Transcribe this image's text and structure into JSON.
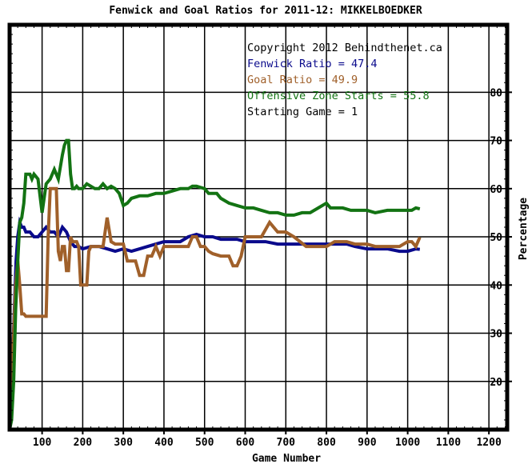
{
  "chart_data": {
    "type": "line",
    "title": "Fenwick and Goal Ratios for 2011-12: MIKKELBOEDKER",
    "xlabel": "Game Number",
    "ylabel": "Percentage",
    "xlim": [
      20,
      1245
    ],
    "ylim": [
      10,
      94
    ],
    "x_ticks": [
      100,
      200,
      300,
      400,
      500,
      600,
      700,
      800,
      900,
      1000,
      1100,
      1200
    ],
    "y_ticks": [
      20,
      30,
      40,
      50,
      60,
      70,
      80
    ],
    "grid": true,
    "annotations": [
      {
        "text": "Copyright 2012 Behindthenet.ca",
        "color": "#000000"
      },
      {
        "text": "Fenwick Ratio = 47.4",
        "color": "#0a0a8c"
      },
      {
        "text": "Goal Ratio = 49.9",
        "color": "#a0602a"
      },
      {
        "text": "Offensive Zone Starts = 55.8",
        "color": "#137313"
      },
      {
        "text": "Starting Game = 1",
        "color": "#000000"
      }
    ],
    "series": [
      {
        "color": "#0a0a8c",
        "x": [
          20,
          22,
          24,
          26,
          28,
          30,
          33,
          36,
          40,
          45,
          50,
          55,
          60,
          70,
          80,
          90,
          100,
          110,
          120,
          130,
          140,
          150,
          160,
          170,
          180,
          190,
          200,
          220,
          240,
          260,
          280,
          300,
          320,
          340,
          360,
          380,
          400,
          420,
          440,
          460,
          480,
          500,
          520,
          540,
          560,
          580,
          600,
          620,
          650,
          680,
          700,
          720,
          750,
          780,
          800,
          820,
          850,
          870,
          900,
          930,
          950,
          980,
          1000,
          1020,
          1030
        ],
        "y": [
          18,
          23,
          15,
          20,
          26,
          31,
          38,
          45,
          50,
          53,
          52,
          52,
          51,
          51,
          50,
          50,
          51,
          52,
          51,
          51,
          50,
          52,
          51,
          49,
          48,
          48,
          47.5,
          48,
          48,
          47.5,
          47,
          47.5,
          47,
          47.5,
          48,
          48.5,
          49,
          49,
          49,
          50,
          50.5,
          50,
          50,
          49.5,
          49.5,
          49.5,
          49,
          49,
          49,
          48.5,
          48.5,
          48.5,
          48.5,
          48.5,
          48.5,
          48.5,
          48.5,
          48,
          47.5,
          47.5,
          47.5,
          47,
          47,
          47.5,
          47.4
        ]
      },
      {
        "color": "#a0602a",
        "x": [
          20,
          25,
          30,
          35,
          40,
          45,
          50,
          55,
          60,
          65,
          70,
          75,
          80,
          90,
          100,
          110,
          115,
          120,
          125,
          130,
          135,
          140,
          145,
          150,
          155,
          160,
          165,
          170,
          175,
          180,
          185,
          190,
          195,
          200,
          205,
          210,
          215,
          220,
          225,
          230,
          240,
          250,
          260,
          270,
          280,
          290,
          300,
          310,
          320,
          330,
          340,
          350,
          360,
          370,
          380,
          390,
          400,
          420,
          440,
          460,
          470,
          480,
          490,
          500,
          510,
          520,
          540,
          560,
          570,
          580,
          590,
          600,
          620,
          640,
          660,
          680,
          700,
          720,
          750,
          780,
          800,
          820,
          850,
          870,
          900,
          920,
          950,
          980,
          1000,
          1010,
          1020,
          1030
        ],
        "y": [
          10,
          20,
          30,
          40,
          45,
          40,
          34,
          34,
          33.5,
          33.5,
          33.5,
          33.5,
          33.5,
          33.5,
          33.5,
          33.5,
          50,
          60,
          60,
          60,
          60,
          47,
          45,
          48,
          48,
          43,
          43,
          50,
          49,
          49,
          49,
          48,
          40,
          40,
          40,
          40,
          47,
          48,
          48,
          48,
          48,
          48,
          54,
          49,
          48.5,
          48.5,
          48.5,
          45,
          45,
          45,
          42,
          42,
          46,
          46,
          48,
          46,
          48,
          48,
          48,
          48,
          50,
          50,
          48,
          48,
          47,
          46.5,
          46,
          46,
          44,
          44,
          46,
          50,
          50,
          50,
          53,
          51,
          51,
          50,
          48,
          48,
          48,
          49,
          49,
          48.5,
          48.5,
          48,
          48,
          48,
          49,
          49,
          48,
          49.9
        ]
      },
      {
        "color": "#137313",
        "x": [
          20,
          25,
          30,
          35,
          40,
          45,
          50,
          55,
          60,
          65,
          70,
          75,
          80,
          90,
          100,
          110,
          120,
          130,
          140,
          150,
          155,
          160,
          165,
          170,
          175,
          180,
          185,
          190,
          200,
          210,
          220,
          230,
          240,
          250,
          260,
          270,
          280,
          290,
          300,
          310,
          320,
          340,
          360,
          380,
          400,
          420,
          440,
          460,
          470,
          480,
          500,
          510,
          520,
          530,
          540,
          560,
          580,
          600,
          620,
          640,
          660,
          680,
          700,
          720,
          740,
          760,
          780,
          800,
          810,
          820,
          840,
          860,
          880,
          900,
          920,
          950,
          980,
          1000,
          1010,
          1020,
          1030
        ],
        "y": [
          10,
          12,
          20,
          35,
          45,
          53,
          54,
          57,
          63,
          63,
          63,
          62,
          63,
          62,
          55,
          61,
          62,
          64,
          62,
          67,
          69,
          70,
          70,
          63,
          60,
          60,
          60.5,
          60,
          60,
          61,
          60.5,
          60,
          60,
          61,
          60,
          60.5,
          60,
          59,
          56.5,
          57,
          58,
          58.5,
          58.5,
          59,
          59,
          59.5,
          60,
          60,
          60.5,
          60.5,
          60,
          59,
          59,
          59,
          58,
          57,
          56.5,
          56,
          56,
          55.5,
          55,
          55,
          54.5,
          54.5,
          55,
          55,
          56,
          57,
          56,
          56,
          56,
          55.5,
          55.5,
          55.5,
          55,
          55.5,
          55.5,
          55.5,
          55.5,
          56,
          55.8
        ]
      }
    ]
  }
}
